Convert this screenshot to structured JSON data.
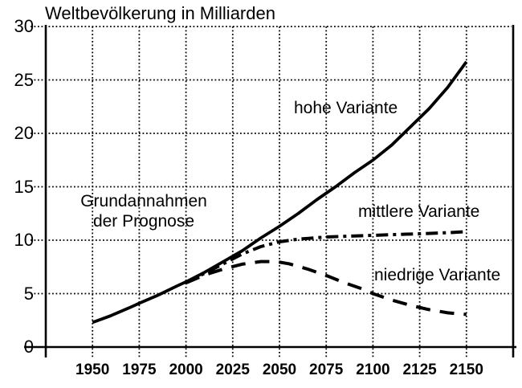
{
  "colors": {
    "ink": "#000000",
    "background": "#ffffff"
  },
  "labels": {
    "hohe": "hohe Variante",
    "mittlere": "mittlere Variante",
    "niedrige": "niedrige Variante",
    "grundannahmen_line1": "Grundannahmen",
    "grundannahmen_line2": "der Prognose"
  },
  "chart_data": {
    "type": "line",
    "title": "Weltbevölkerung in Milliarden",
    "xlabel": "",
    "ylabel": "Weltbevölkerung in Milliarden",
    "xlim": [
      1925,
      2175
    ],
    "ylim": [
      0,
      30
    ],
    "x_ticks": [
      1950,
      1975,
      2000,
      2025,
      2050,
      2075,
      2100,
      2125,
      2150
    ],
    "y_ticks": [
      0,
      5,
      10,
      15,
      20,
      25,
      30
    ],
    "grid": "dotted",
    "legend_position": "inline-annotations",
    "series": [
      {
        "name": "hohe Variante",
        "style": "solid",
        "points": [
          [
            1950,
            2.3
          ],
          [
            1960,
            2.95
          ],
          [
            1970,
            3.7
          ],
          [
            1975,
            4.1
          ],
          [
            1985,
            4.85
          ],
          [
            1995,
            5.7
          ],
          [
            2000,
            6.1
          ],
          [
            2010,
            7.0
          ],
          [
            2020,
            8.0
          ],
          [
            2030,
            9.0
          ],
          [
            2040,
            10.2
          ],
          [
            2050,
            11.3
          ],
          [
            2060,
            12.5
          ],
          [
            2070,
            13.8
          ],
          [
            2080,
            15.0
          ],
          [
            2090,
            16.3
          ],
          [
            2100,
            17.5
          ],
          [
            2110,
            18.9
          ],
          [
            2120,
            20.6
          ],
          [
            2130,
            22.3
          ],
          [
            2140,
            24.3
          ],
          [
            2150,
            26.7
          ]
        ]
      },
      {
        "name": "mittlere Variante",
        "style": "dashdot",
        "points": [
          [
            2000,
            6.05
          ],
          [
            2010,
            6.9
          ],
          [
            2020,
            7.8
          ],
          [
            2030,
            8.7
          ],
          [
            2040,
            9.4
          ],
          [
            2050,
            9.85
          ],
          [
            2060,
            10.1
          ],
          [
            2075,
            10.3
          ],
          [
            2090,
            10.4
          ],
          [
            2100,
            10.45
          ],
          [
            2115,
            10.55
          ],
          [
            2125,
            10.6
          ],
          [
            2140,
            10.7
          ],
          [
            2150,
            10.8
          ]
        ]
      },
      {
        "name": "niedrige Variante",
        "style": "dashed",
        "points": [
          [
            2000,
            6.0
          ],
          [
            2010,
            6.75
          ],
          [
            2020,
            7.3
          ],
          [
            2030,
            7.75
          ],
          [
            2040,
            8.0
          ],
          [
            2048,
            8.0
          ],
          [
            2055,
            7.8
          ],
          [
            2065,
            7.3
          ],
          [
            2075,
            6.7
          ],
          [
            2085,
            6.0
          ],
          [
            2095,
            5.4
          ],
          [
            2100,
            5.0
          ],
          [
            2110,
            4.4
          ],
          [
            2120,
            3.9
          ],
          [
            2130,
            3.5
          ],
          [
            2140,
            3.2
          ],
          [
            2150,
            3.05
          ]
        ]
      }
    ],
    "annotations": [
      {
        "text": "Grundannahmen der Prognose",
        "x": 1995,
        "y": 12.3
      },
      {
        "text": "hohe Variante",
        "x": 2058,
        "y": 22.0
      },
      {
        "text": "mittlere Variante",
        "x": 2108,
        "y": 12.2
      },
      {
        "text": "niedrige Variante",
        "x": 2112,
        "y": 6.3
      }
    ]
  }
}
